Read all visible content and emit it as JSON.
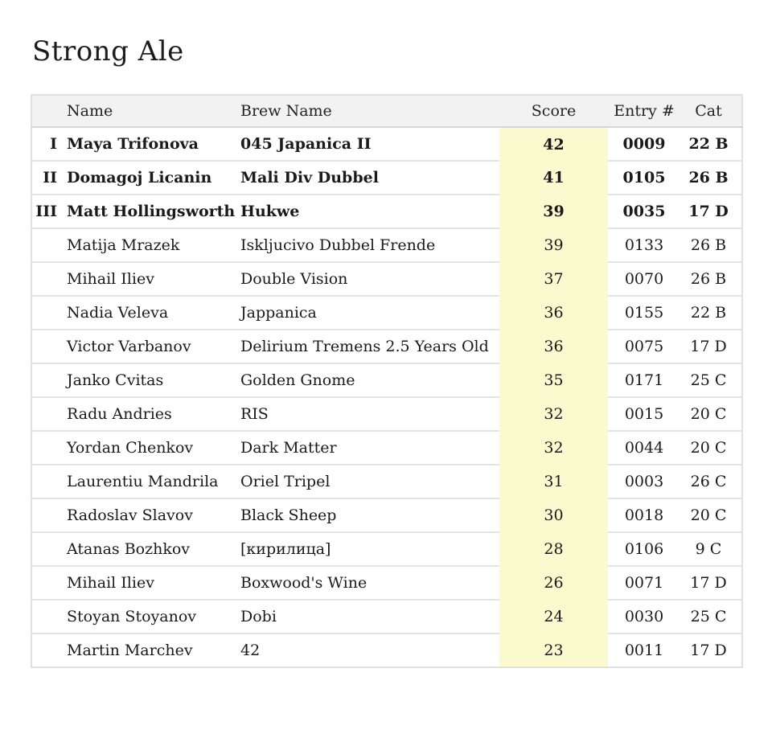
{
  "page": {
    "title": "Strong Ale"
  },
  "colors": {
    "score_highlight": "#FBF9CE",
    "header_bg": "#F2F2F2",
    "outer_border": "#E0E0E0",
    "row_border": "#E3E3E3",
    "text": "#1A1A1A"
  },
  "table": {
    "headers": {
      "rank": "",
      "name": "Name",
      "brew": "Brew Name",
      "score": "Score",
      "entry": "Entry #",
      "cat": "Cat"
    },
    "rows": [
      {
        "rank": "I",
        "name": "Maya Trifonova",
        "brew": "045 Japanica II",
        "score": "42",
        "entry": "0009",
        "cat": "22 B",
        "bold": true
      },
      {
        "rank": "II",
        "name": "Domagoj Licanin",
        "brew": "Mali Div Dubbel",
        "score": "41",
        "entry": "0105",
        "cat": "26 B",
        "bold": true
      },
      {
        "rank": "III",
        "name": "Matt Hollingsworth",
        "brew": "Hukwe",
        "score": "39",
        "entry": "0035",
        "cat": "17 D",
        "bold": true
      },
      {
        "rank": "",
        "name": "Matija Mrazek",
        "brew": "Iskljucivo Dubbel Frende",
        "score": "39",
        "entry": "0133",
        "cat": "26 B",
        "bold": false
      },
      {
        "rank": "",
        "name": "Mihail Iliev",
        "brew": "Double Vision",
        "score": "37",
        "entry": "0070",
        "cat": "26 B",
        "bold": false
      },
      {
        "rank": "",
        "name": "Nadia Veleva",
        "brew": "Jappanica",
        "score": "36",
        "entry": "0155",
        "cat": "22 B",
        "bold": false
      },
      {
        "rank": "",
        "name": "Victor Varbanov",
        "brew": "Delirium Tremens 2.5 Years Old",
        "score": "36",
        "entry": "0075",
        "cat": "17 D",
        "bold": false
      },
      {
        "rank": "",
        "name": "Janko Cvitas",
        "brew": "Golden Gnome",
        "score": "35",
        "entry": "0171",
        "cat": "25 C",
        "bold": false
      },
      {
        "rank": "",
        "name": "Radu Andries",
        "brew": "RIS",
        "score": "32",
        "entry": "0015",
        "cat": "20 C",
        "bold": false
      },
      {
        "rank": "",
        "name": "Yordan Chenkov",
        "brew": "Dark Matter",
        "score": "32",
        "entry": "0044",
        "cat": "20 C",
        "bold": false
      },
      {
        "rank": "",
        "name": "Laurentiu Mandrila",
        "brew": "Oriel Tripel",
        "score": "31",
        "entry": "0003",
        "cat": "26 C",
        "bold": false
      },
      {
        "rank": "",
        "name": "Radoslav Slavov",
        "brew": "Black Sheep",
        "score": "30",
        "entry": "0018",
        "cat": "20 C",
        "bold": false
      },
      {
        "rank": "",
        "name": "Atanas Bozhkov",
        "brew": "[кирилица]",
        "score": "28",
        "entry": "0106",
        "cat": "9 C",
        "bold": false
      },
      {
        "rank": "",
        "name": "Mihail Iliev",
        "brew": "Boxwood's Wine",
        "score": "26",
        "entry": "0071",
        "cat": "17 D",
        "bold": false
      },
      {
        "rank": "",
        "name": "Stoyan Stoyanov",
        "brew": "Dobi",
        "score": "24",
        "entry": "0030",
        "cat": "25 C",
        "bold": false
      },
      {
        "rank": "",
        "name": "Martin Marchev",
        "brew": "42",
        "score": "23",
        "entry": "0011",
        "cat": "17 D",
        "bold": false
      }
    ]
  }
}
